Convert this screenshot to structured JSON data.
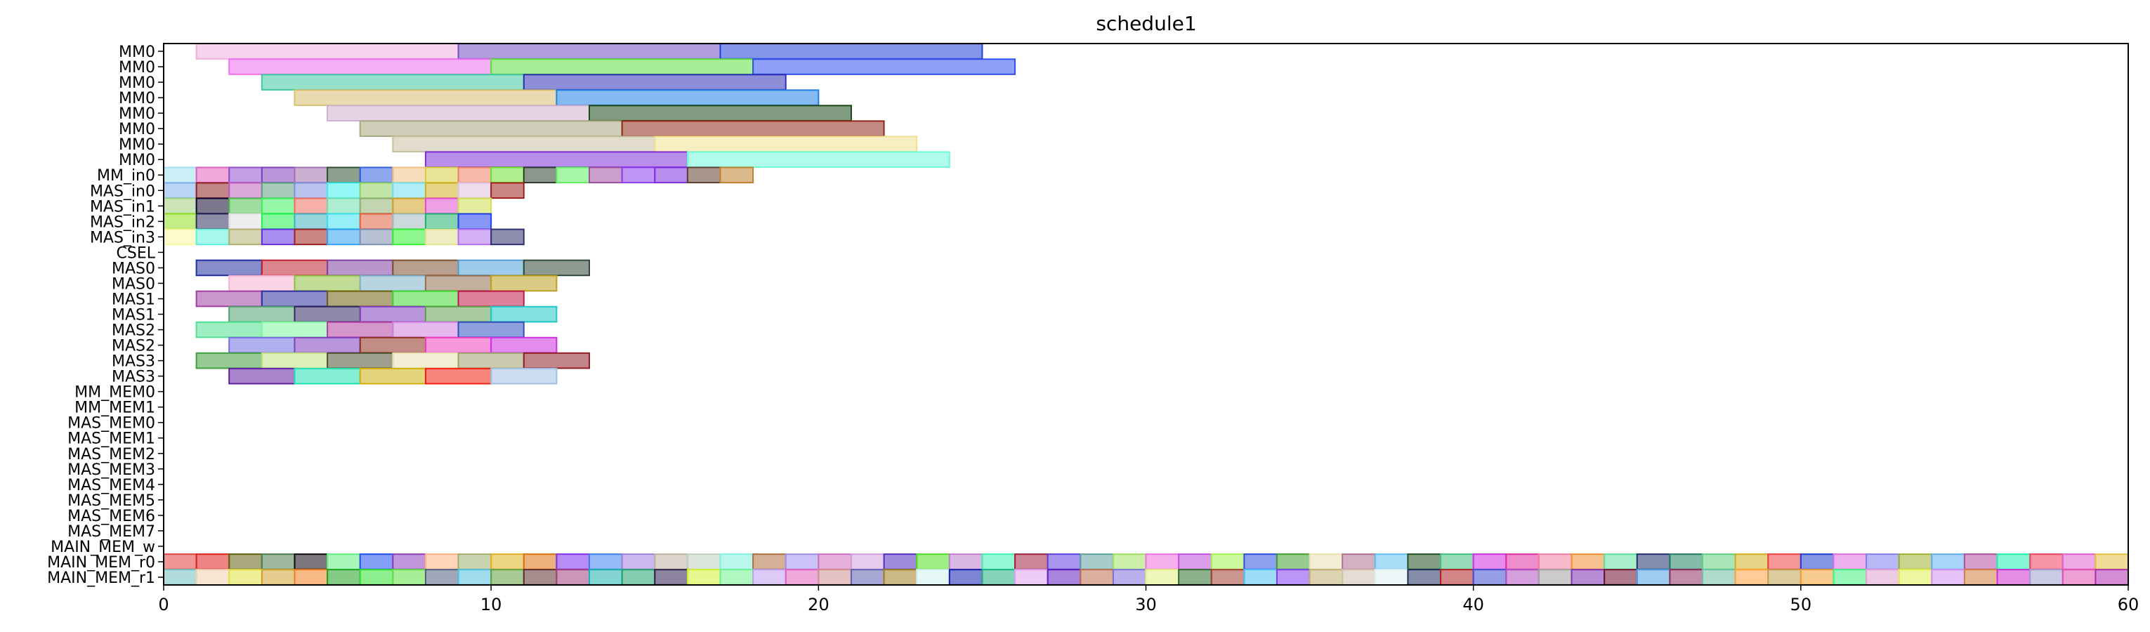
{
  "chart_data": {
    "type": "gantt",
    "title": "schedule1",
    "xlabel": "",
    "ylabel": "",
    "xlim": [
      0,
      60
    ],
    "xticks": [
      0,
      10,
      20,
      30,
      40,
      50,
      60
    ],
    "grid": false,
    "legend": "none",
    "rows": [
      "MM0",
      "MM0",
      "MM0",
      "MM0",
      "MM0",
      "MM0",
      "MM0",
      "MM0",
      "MM_in0",
      "MAS_in0",
      "MAS_in1",
      "MAS_in2",
      "MAS_in3",
      "CSEL",
      "MAS0",
      "MAS0",
      "MAS1",
      "MAS1",
      "MAS2",
      "MAS2",
      "MAS3",
      "MAS3",
      "MM_MEM0",
      "MM_MEM1",
      "MAS_MEM0",
      "MAS_MEM1",
      "MAS_MEM2",
      "MAS_MEM3",
      "MAS_MEM4",
      "MAS_MEM5",
      "MAS_MEM6",
      "MAS_MEM7",
      "MAIN_MEM_w",
      "MAIN_MEM_r0",
      "MAIN_MEM_r1"
    ],
    "palette": [
      "#e8a0d0",
      "#8060c0",
      "#4050d8",
      "#e060e8",
      "#70d850",
      "#4060e8",
      "#50c8a8",
      "#4040c0",
      "#d8c070",
      "#3080e0",
      "#c8a8c8",
      "#205020",
      "#b0b098",
      "#a03020",
      "#d8d0b0",
      "#e8e0a0",
      "#8030d0",
      "#70f0d8",
      "#90c8f0",
      "#e08080",
      "#c070c0",
      "#9050a0",
      "#6070b0",
      "#c0a0a0",
      "#80c070",
      "#a0d0e0",
      "#ffd0e8",
      "#e0e060",
      "#70d0a0",
      "#f06070",
      "#40b0e0",
      "#c080f0",
      "#90a080",
      "#f0a050",
      "#30d0b0",
      "#806060"
    ],
    "tasks": [
      {
        "row": 0,
        "start": 1,
        "end": 9,
        "color": "#f0b0e0"
      },
      {
        "row": 0,
        "start": 9,
        "end": 17,
        "color": "#7050c0"
      },
      {
        "row": 0,
        "start": 17,
        "end": 25,
        "color": "#2040d8"
      },
      {
        "row": 1,
        "start": 2,
        "end": 10,
        "color": "#f070f0"
      },
      {
        "row": 1,
        "start": 10,
        "end": 18,
        "color": "#60e040"
      },
      {
        "row": 1,
        "start": 18,
        "end": 26,
        "color": "#3050f0"
      },
      {
        "row": 2,
        "start": 3,
        "end": 11,
        "color": "#40c8a0"
      },
      {
        "row": 2,
        "start": 11,
        "end": 19,
        "color": "#3030b8"
      },
      {
        "row": 3,
        "start": 4,
        "end": 12,
        "color": "#d8c070"
      },
      {
        "row": 3,
        "start": 12,
        "end": 20,
        "color": "#2080e8"
      },
      {
        "row": 4,
        "start": 5,
        "end": 13,
        "color": "#d0b0d0"
      },
      {
        "row": 4,
        "start": 13,
        "end": 21,
        "color": "#1a4a1a"
      },
      {
        "row": 5,
        "start": 6,
        "end": 14,
        "color": "#a8a880"
      },
      {
        "row": 5,
        "start": 14,
        "end": 22,
        "color": "#902818"
      },
      {
        "row": 6,
        "start": 7,
        "end": 15,
        "color": "#c8c0a0"
      },
      {
        "row": 6,
        "start": 15,
        "end": 23,
        "color": "#f0e090"
      },
      {
        "row": 7,
        "start": 8,
        "end": 16,
        "color": "#8030d8"
      },
      {
        "row": 7,
        "start": 16,
        "end": 24,
        "color": "#70f8d8"
      },
      {
        "row": 14,
        "start": 1,
        "end": 3,
        "color": "#2030a0"
      },
      {
        "row": 14,
        "start": 3,
        "end": 5,
        "color": "#c02030"
      },
      {
        "row": 14,
        "start": 5,
        "end": 7,
        "color": "#8040a0"
      },
      {
        "row": 14,
        "start": 7,
        "end": 9,
        "color": "#805030"
      },
      {
        "row": 14,
        "start": 9,
        "end": 11,
        "color": "#50a0d8"
      },
      {
        "row": 14,
        "start": 11,
        "end": 13,
        "color": "#304838"
      },
      {
        "row": 15,
        "start": 2,
        "end": 4,
        "color": "#f8b0d0"
      },
      {
        "row": 15,
        "start": 4,
        "end": 6,
        "color": "#90c040"
      },
      {
        "row": 15,
        "start": 6,
        "end": 8,
        "color": "#80b0c8"
      },
      {
        "row": 15,
        "start": 8,
        "end": 10,
        "color": "#907050"
      },
      {
        "row": 15,
        "start": 10,
        "end": 12,
        "color": "#c0a020"
      },
      {
        "row": 16,
        "start": 1,
        "end": 3,
        "color": "#a040a0"
      },
      {
        "row": 16,
        "start": 3,
        "end": 5,
        "color": "#3030a0"
      },
      {
        "row": 16,
        "start": 5,
        "end": 7,
        "color": "#706010"
      },
      {
        "row": 16,
        "start": 7,
        "end": 9,
        "color": "#40d830"
      },
      {
        "row": 16,
        "start": 9,
        "end": 11,
        "color": "#c01848"
      },
      {
        "row": 17,
        "start": 2,
        "end": 4,
        "color": "#50a070"
      },
      {
        "row": 17,
        "start": 4,
        "end": 6,
        "color": "#302860"
      },
      {
        "row": 17,
        "start": 6,
        "end": 8,
        "color": "#8040c0"
      },
      {
        "row": 17,
        "start": 8,
        "end": 10,
        "color": "#60a050"
      },
      {
        "row": 17,
        "start": 10,
        "end": 12,
        "color": "#20c8c8"
      },
      {
        "row": 18,
        "start": 1,
        "end": 3,
        "color": "#50e090"
      },
      {
        "row": 18,
        "start": 3,
        "end": 5,
        "color": "#80f8a0"
      },
      {
        "row": 18,
        "start": 5,
        "end": 7,
        "color": "#b040a0"
      },
      {
        "row": 18,
        "start": 7,
        "end": 9,
        "color": "#d080e0"
      },
      {
        "row": 18,
        "start": 9,
        "end": 11,
        "color": "#3050c0"
      },
      {
        "row": 19,
        "start": 2,
        "end": 4,
        "color": "#7070e0"
      },
      {
        "row": 19,
        "start": 4,
        "end": 6,
        "color": "#8040c0"
      },
      {
        "row": 19,
        "start": 6,
        "end": 8,
        "color": "#903020"
      },
      {
        "row": 19,
        "start": 8,
        "end": 10,
        "color": "#f040c0"
      },
      {
        "row": 19,
        "start": 10,
        "end": 12,
        "color": "#d030e0"
      },
      {
        "row": 20,
        "start": 1,
        "end": 3,
        "color": "#40a040"
      },
      {
        "row": 20,
        "start": 3,
        "end": 5,
        "color": "#c0e080"
      },
      {
        "row": 20,
        "start": 5,
        "end": 7,
        "color": "#505030"
      },
      {
        "row": 20,
        "start": 7,
        "end": 9,
        "color": "#e8e0b0"
      },
      {
        "row": 20,
        "start": 9,
        "end": 11,
        "color": "#a0a070"
      },
      {
        "row": 20,
        "start": 11,
        "end": 13,
        "color": "#902028"
      },
      {
        "row": 21,
        "start": 2,
        "end": 4,
        "color": "#6020a0"
      },
      {
        "row": 21,
        "start": 4,
        "end": 6,
        "color": "#20e0b0"
      },
      {
        "row": 21,
        "start": 6,
        "end": 8,
        "color": "#d0b010"
      },
      {
        "row": 21,
        "start": 8,
        "end": 10,
        "color": "#f02010"
      },
      {
        "row": 21,
        "start": 10,
        "end": 12,
        "color": "#a0c0e0"
      }
    ],
    "unit_rows": [
      {
        "row": 8,
        "start": 0,
        "count": 18,
        "colors": [
          "#a0e0f0",
          "#e060c0",
          "#9050d0",
          "#8040c0",
          "#a070b0",
          "#305030",
          "#3060e0",
          "#f0c080",
          "#d8d040",
          "#f08060",
          "#70e030",
          "#304030",
          "#60f060",
          "#a050a0",
          "#9040f0",
          "#8030e0",
          "#604030",
          "#c08030"
        ]
      },
      {
        "row": 9,
        "start": 0,
        "count": 11,
        "colors": [
          "#80b0f0",
          "#902020",
          "#c060c0",
          "#60a080",
          "#8090e0",
          "#40f0f0",
          "#90d060",
          "#70e0f0",
          "#d0b020",
          "#e0c0e0",
          "#a02020"
        ]
      },
      {
        "row": 10,
        "start": 0,
        "count": 10,
        "colors": [
          "#a0d080",
          "#100830",
          "#50c050",
          "#40f060",
          "#f07060",
          "#70e0b0",
          "#90b070",
          "#d0a020",
          "#e050d0",
          "#d0e050"
        ]
      },
      {
        "row": 11,
        "start": 0,
        "count": 10,
        "colors": [
          "#90e020",
          "#303060",
          "#e0e0e0",
          "#20f050",
          "#40b0c0",
          "#40e0f0",
          "#e06040",
          "#a0b8c0",
          "#20b070",
          "#2040f0"
        ]
      },
      {
        "row": 12,
        "start": 0,
        "count": 11,
        "colors": [
          "#f8f8a0",
          "#60f0e0",
          "#b0b070",
          "#6030e0",
          "#a02020",
          "#30a0f0",
          "#8090b0",
          "#30f030",
          "#e0e090",
          "#b070f0",
          "#303070"
        ]
      },
      {
        "row": 33,
        "start": 0,
        "count": 60,
        "colors": [
          "#e04040",
          "#e02020",
          "#606010",
          "#508050",
          "#100810",
          "#60f080",
          "#2050f0",
          "#9040c0",
          "#ffb080",
          "#a0b070",
          "#e0b020",
          "#e07010",
          "#8030f0",
          "#4080f0",
          "#a080e0",
          "#c0b0a0",
          "#c0d0c0",
          "#80f0e0",
          "#b07040",
          "#a090f0",
          "#d070c0",
          "#d0a0e0",
          "#5030c0",
          "#50e020",
          "#c080d0",
          "#40f0b0",
          "#a02040",
          "#6040e0",
          "#60a0a0",
          "#a0e060",
          "#f070e0",
          "#c050e0",
          "#a0f050",
          "#3050e0",
          "#40a030",
          "#e8e0b0",
          "#b07090",
          "#60c0f0",
          "#205020",
          "#40c080",
          "#d030e0",
          "#e030a0",
          "#f080a0",
          "#f09030",
          "#60e0a0",
          "#203070",
          "#208060",
          "#60d080",
          "#d0b020",
          "#f04040",
          "#2040d0",
          "#e070e0",
          "#8080f0",
          "#a0b030",
          "#60b0f0",
          "#b050a0",
          "#20f0b0",
          "#f04060",
          "#e060d0",
          "#e0c040"
        ]
      },
      {
        "row": 34,
        "start": 0,
        "count": 60,
        "colors": [
          "#70c0c0",
          "#f0d0b0",
          "#e0e040",
          "#d0a030",
          "#f08020",
          "#20a020",
          "#30e030",
          "#60e040",
          "#506080",
          "#50c0e0",
          "#60a040",
          "#603030",
          "#a04080",
          "#20b0b0",
          "#20a070",
          "#302050",
          "#d0f030",
          "#70f090",
          "#c0a0f0",
          "#e060c0",
          "#d09090",
          "#6060b0",
          "#a08020",
          "#d0f0f0",
          "#1020b0",
          "#20b080",
          "#e0a0f0",
          "#6020c0",
          "#c07050",
          "#8070e0",
          "#e0f080",
          "#307030",
          "#a04030",
          "#50c0f0",
          "#8040f0",
          "#c0b070",
          "#d0c0b0",
          "#e0f0f0",
          "#203060",
          "#b02020",
          "#4050d0",
          "#b050c0",
          "#a0a0a0",
          "#8030b0",
          "#701030",
          "#50a0e0",
          "#903060",
          "#70c0a0",
          "#ffa040",
          "#c0a050",
          "#f0a030",
          "#40f080",
          "#e0a0d0",
          "#e0f050",
          "#d090f0",
          "#d08040",
          "#d030d0",
          "#a0a0d0",
          "#e050b0",
          "#b030b0"
        ]
      }
    ]
  }
}
